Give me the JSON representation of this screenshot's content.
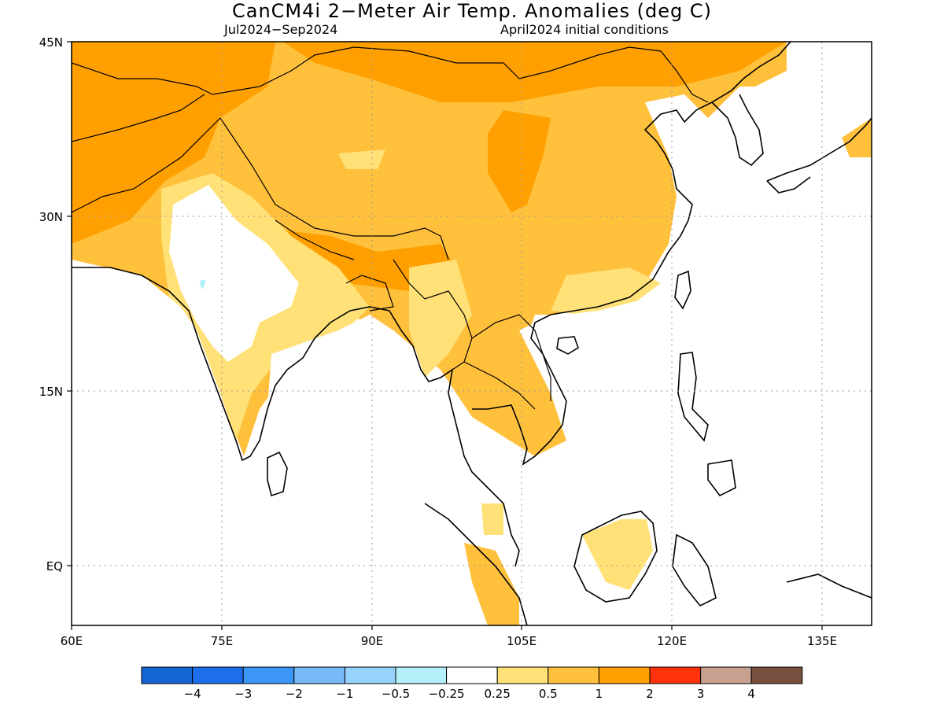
{
  "title": "CanCM4i 2−Meter Air Temp. Anomalies (deg C)",
  "subtitle_left": "Jul2024−Sep2024",
  "subtitle_right": "April2024 initial conditions",
  "map": {
    "lon_range": [
      60,
      140
    ],
    "lat_range": [
      -5,
      45
    ],
    "lon_ticks": [
      "60E",
      "75E",
      "90E",
      "105E",
      "120E",
      "135E"
    ],
    "lat_ticks": [
      "45N",
      "30N",
      "15N",
      "EQ"
    ],
    "gridlines": "dotted"
  },
  "colorbar": {
    "labels": [
      "−4",
      "−3",
      "−2",
      "−1",
      "−0.5",
      "−0.25",
      "0.25",
      "0.5",
      "1",
      "2",
      "3",
      "4"
    ],
    "colors": [
      "#1464d2",
      "#1e6eeb",
      "#3c96f5",
      "#78b9fa",
      "#96d2fa",
      "#b4f0fa",
      "#ffffff",
      "#ffe178",
      "#ffc03c",
      "#ffa000",
      "#ff320a",
      "#c8a090",
      "#785040"
    ]
  },
  "colors": {
    "anomaly_0_25_0_5": "#ffe178",
    "anomaly_0_5_1": "#ffc03c",
    "anomaly_1_2": "#ffa000",
    "anomaly_neg": "#b4f0fa",
    "land_outline": "#000000"
  }
}
